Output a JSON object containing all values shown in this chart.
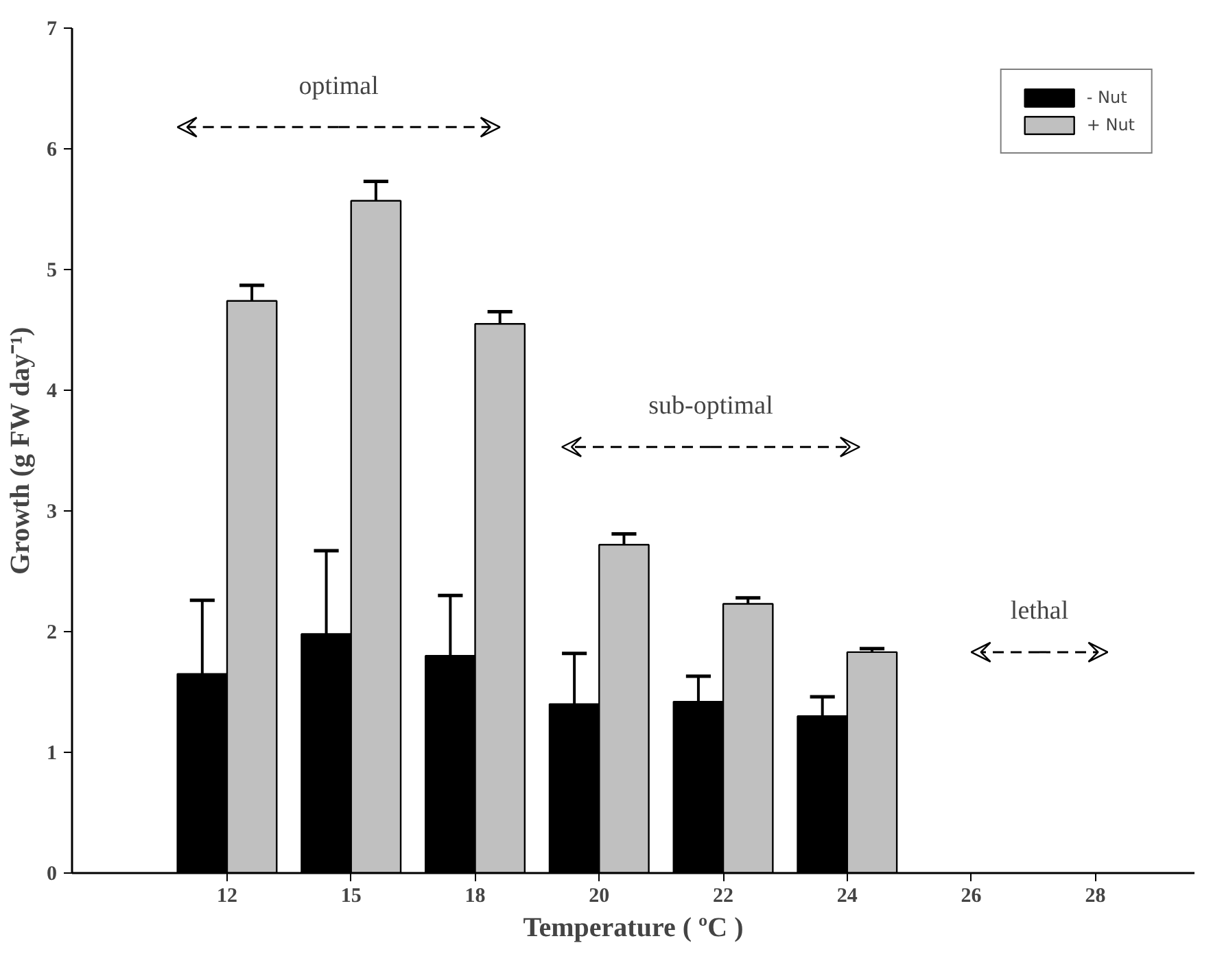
{
  "chart_data": {
    "type": "bar",
    "xlabel": "Temperature ( ºC )",
    "ylabel": "Growth (g FW day⁻¹)",
    "categories": [
      "12",
      "15",
      "18",
      "20",
      "22",
      "24",
      "26",
      "28"
    ],
    "series": [
      {
        "name": "- Nut",
        "color": "#000000",
        "values": [
          1.65,
          1.98,
          1.8,
          1.4,
          1.42,
          1.3,
          null,
          null
        ],
        "errors": [
          [
            1.65,
            2.26
          ],
          [
            1.98,
            2.67
          ],
          [
            1.8,
            2.3
          ],
          [
            1.4,
            1.82
          ],
          [
            1.42,
            1.63
          ],
          [
            1.3,
            1.46
          ],
          null,
          null
        ]
      },
      {
        "name": "+ Nut",
        "color": "#c0c0c0",
        "values": [
          4.74,
          5.57,
          4.55,
          2.72,
          2.23,
          1.83,
          null,
          null
        ],
        "errors": [
          [
            4.74,
            4.87
          ],
          [
            5.57,
            5.73
          ],
          [
            4.55,
            4.65
          ],
          [
            2.72,
            2.81
          ],
          [
            2.23,
            2.28
          ],
          [
            1.83,
            1.86
          ],
          null,
          null
        ]
      }
    ],
    "annotations": [
      "optimal",
      "sub-optimal",
      "lethal"
    ],
    "ylim": [
      0,
      7
    ],
    "yticks": [
      0,
      1,
      2,
      3,
      4,
      5,
      6,
      7
    ],
    "grid": false,
    "legend": "top right"
  }
}
